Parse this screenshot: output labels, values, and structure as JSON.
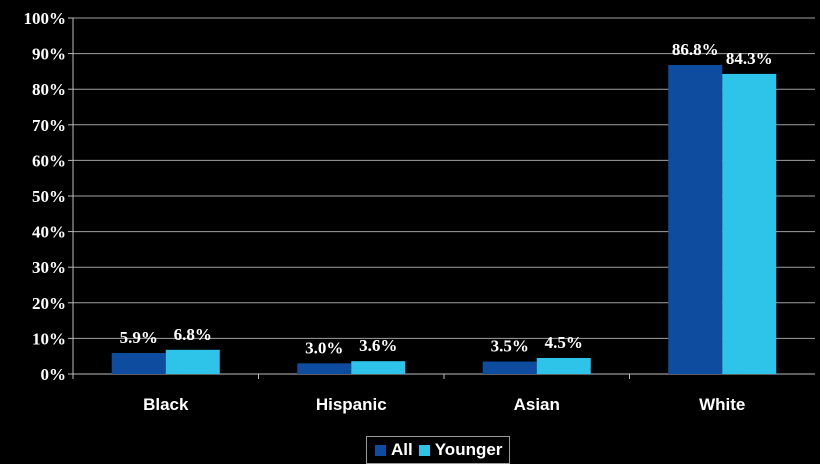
{
  "chart_data": {
    "type": "bar",
    "categories": [
      "Black",
      "Hispanic",
      "Asian",
      "White"
    ],
    "series": [
      {
        "name": "All",
        "color": "#0D4C9E",
        "values": [
          5.9,
          3.0,
          3.5,
          86.8
        ],
        "labels": [
          "5.9%",
          "3.0%",
          "3.5%",
          "86.8%"
        ]
      },
      {
        "name": "Younger",
        "color": "#2EC4EA",
        "values": [
          6.8,
          3.6,
          4.5,
          84.3
        ],
        "labels": [
          "6.8%",
          "3.6%",
          "4.5%",
          "84.3%"
        ]
      }
    ],
    "ylim": [
      0,
      100
    ],
    "yticks": [
      0,
      10,
      20,
      30,
      40,
      50,
      60,
      70,
      80,
      90,
      100
    ],
    "ytick_labels": [
      "0%",
      "10%",
      "20%",
      "30%",
      "40%",
      "50%",
      "60%",
      "70%",
      "80%",
      "90%",
      "100%"
    ],
    "grid": true,
    "grid_color": "#A0A0A0",
    "legend_position": "bottom-center",
    "title": "",
    "xlabel": "",
    "ylabel": ""
  }
}
